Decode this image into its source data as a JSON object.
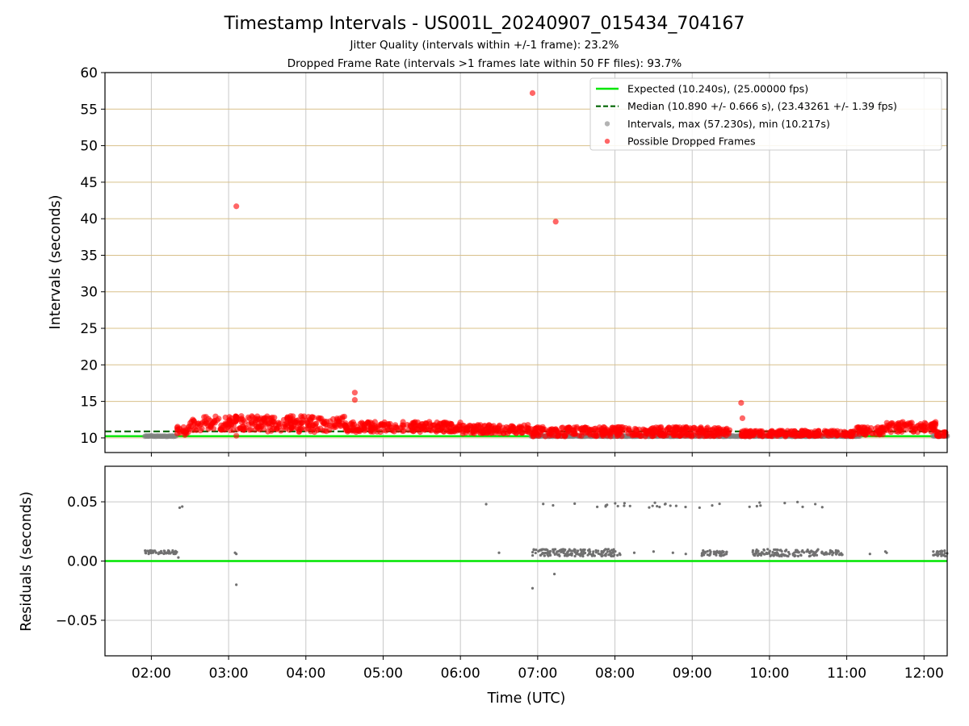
{
  "chart_data": [
    {
      "type": "scatter",
      "title": "Timestamp Intervals - US001L_20240907_015434_704167",
      "subtitle_lines": [
        "Jitter Quality (intervals within +/-1 frame): 23.2%",
        "Dropped Frame Rate (intervals >1 frames late within 50 FF files): 93.7%"
      ],
      "ylabel": "Intervals (seconds)",
      "ylim": [
        8,
        60
      ],
      "xlim": [
        "01:24",
        "12:18"
      ],
      "yticks": [
        "10",
        "15",
        "20",
        "25",
        "30",
        "35",
        "40",
        "45",
        "50",
        "55",
        "60"
      ],
      "grid": true,
      "legend_position": "upper right",
      "legend": [
        {
          "label": "Expected (10.240s), (25.00000 fps)",
          "style": "solid-line",
          "color": "#00e600"
        },
        {
          "label": "Median (10.890 +/- 0.666 s), (23.43261 +/- 1.39 fps)",
          "style": "dashed-line",
          "color": "#006400"
        },
        {
          "label": "Intervals, max (57.230s), min (10.217s)",
          "style": "marker",
          "color": "#808080"
        },
        {
          "label": "Possible Dropped Frames",
          "style": "marker",
          "color": "#ff0000"
        }
      ],
      "series": [
        {
          "name": "Expected",
          "type": "hline",
          "y": 10.24,
          "color": "#00e600"
        },
        {
          "name": "Median",
          "type": "hline",
          "y": 10.89,
          "color": "#006400"
        },
        {
          "name": "Intervals",
          "color": "#808080",
          "segments": [
            {
              "x_start": "01:55",
              "x_end": "02:19",
              "y": 10.25
            },
            {
              "x_start": "06:55",
              "x_end": "11:10",
              "y": 10.25
            },
            {
              "x_start": "12:07",
              "x_end": "12:18",
              "y": 10.25
            }
          ]
        },
        {
          "name": "Possible Dropped Frames",
          "color": "#ff0000",
          "bands": [
            {
              "x_start": "02:20",
              "x_end": "02:30",
              "y_low": 10.3,
              "y_high": 11.6
            },
            {
              "x_start": "02:30",
              "x_end": "03:30",
              "y_low": 11.0,
              "y_high": 13.0
            },
            {
              "x_start": "03:30",
              "x_end": "04:30",
              "y_low": 10.8,
              "y_high": 13.0
            },
            {
              "x_start": "04:30",
              "x_end": "06:00",
              "y_low": 10.8,
              "y_high": 12.2
            },
            {
              "x_start": "06:00",
              "x_end": "06:55",
              "y_low": 10.6,
              "y_high": 11.8
            },
            {
              "x_start": "06:55",
              "x_end": "08:00",
              "y_low": 10.2,
              "y_high": 11.5
            },
            {
              "x_start": "08:00",
              "x_end": "09:30",
              "y_low": 10.2,
              "y_high": 11.5
            },
            {
              "x_start": "09:38",
              "x_end": "11:05",
              "y_low": 10.2,
              "y_high": 11.0
            },
            {
              "x_start": "11:05",
              "x_end": "11:30",
              "y_low": 10.4,
              "y_high": 11.5
            },
            {
              "x_start": "11:30",
              "x_end": "12:10",
              "y_low": 10.8,
              "y_high": 12.2
            },
            {
              "x_start": "12:10",
              "x_end": "12:18",
              "y_low": 10.2,
              "y_high": 10.8
            }
          ],
          "outliers": [
            {
              "x": "03:06",
              "y": 41.7
            },
            {
              "x": "03:06",
              "y": 10.3
            },
            {
              "x": "04:38",
              "y": 16.2
            },
            {
              "x": "04:38",
              "y": 15.2
            },
            {
              "x": "06:56",
              "y": 57.2
            },
            {
              "x": "07:14",
              "y": 39.6
            },
            {
              "x": "09:38",
              "y": 14.8
            },
            {
              "x": "09:39",
              "y": 12.7
            }
          ]
        }
      ]
    },
    {
      "type": "scatter",
      "ylabel": "Residuals (seconds)",
      "xlabel": "Time (UTC)",
      "ylim": [
        -0.08,
        0.08
      ],
      "xlim": [
        "01:24",
        "12:18"
      ],
      "yticks": [
        "−0.05",
        "0.00",
        "0.05"
      ],
      "xticks": [
        "02:00",
        "03:00",
        "04:00",
        "05:00",
        "06:00",
        "07:00",
        "08:00",
        "09:00",
        "10:00",
        "11:00",
        "12:00"
      ],
      "grid": true,
      "series": [
        {
          "name": "Zero",
          "type": "hline",
          "y": 0.0,
          "color": "#00e600"
        },
        {
          "name": "Residuals",
          "color": "#707070",
          "clusters": [
            {
              "x_start": "01:55",
              "x_end": "02:20",
              "y_low": 0.006,
              "y_high": 0.009
            },
            {
              "x_start": "06:55",
              "x_end": "08:05",
              "y_low": 0.004,
              "y_high": 0.01
            },
            {
              "x_start": "09:07",
              "x_end": "09:27",
              "y_low": 0.004,
              "y_high": 0.009
            },
            {
              "x_start": "09:47",
              "x_end": "10:40",
              "y_low": 0.004,
              "y_high": 0.01
            },
            {
              "x_start": "10:40",
              "x_end": "10:57",
              "y_low": 0.005,
              "y_high": 0.009
            },
            {
              "x_start": "12:07",
              "x_end": "12:18",
              "y_low": 0.004,
              "y_high": 0.009
            }
          ],
          "sparse_upper": {
            "x_start": "06:55",
            "x_end": "11:05",
            "y_low": 0.045,
            "y_high": 0.05
          },
          "points": [
            {
              "x": "02:21",
              "y": 0.003
            },
            {
              "x": "02:22",
              "y": 0.045
            },
            {
              "x": "02:24",
              "y": 0.046
            },
            {
              "x": "03:05",
              "y": 0.007
            },
            {
              "x": "03:06",
              "y": 0.006
            },
            {
              "x": "03:06",
              "y": -0.02
            },
            {
              "x": "06:20",
              "y": 0.048
            },
            {
              "x": "06:30",
              "y": 0.007
            },
            {
              "x": "06:56",
              "y": -0.023
            },
            {
              "x": "07:13",
              "y": -0.011
            },
            {
              "x": "08:15",
              "y": 0.007
            },
            {
              "x": "08:30",
              "y": 0.008
            },
            {
              "x": "08:45",
              "y": 0.007
            },
            {
              "x": "08:55",
              "y": 0.006
            },
            {
              "x": "11:18",
              "y": 0.006
            },
            {
              "x": "11:30",
              "y": 0.008
            },
            {
              "x": "11:31",
              "y": 0.007
            }
          ]
        }
      ]
    }
  ]
}
